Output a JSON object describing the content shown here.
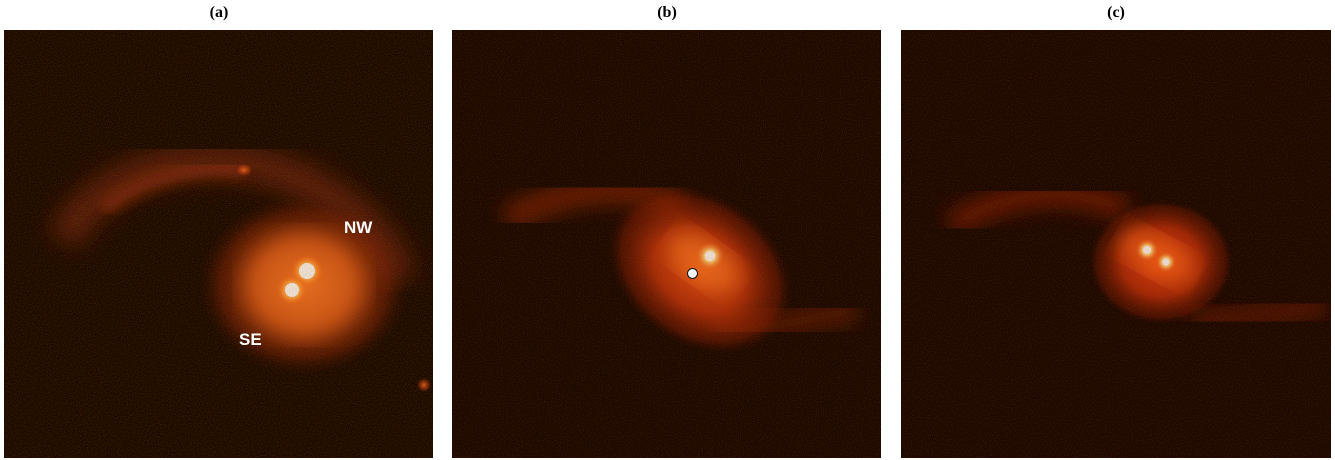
{
  "panels": [
    {
      "caption": "(a)",
      "labels": {
        "nw": "NW",
        "se": "SE"
      }
    },
    {
      "caption": "(b)"
    },
    {
      "caption": "(c)"
    }
  ],
  "colors": {
    "background": "#080100",
    "glow": "#ff5a1a",
    "core": "#ffffff"
  }
}
